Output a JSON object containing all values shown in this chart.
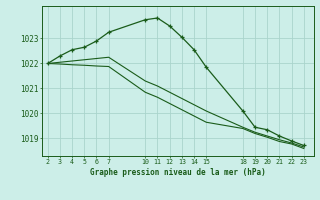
{
  "title": "Graphe pression niveau de la mer (hPa)",
  "bg_color": "#cceee8",
  "grid_color": "#aad4cc",
  "line_color": "#1a5c1a",
  "x_hours": [
    2,
    3,
    4,
    5,
    6,
    7,
    10,
    11,
    12,
    13,
    14,
    15,
    18,
    19,
    20,
    21,
    22,
    23
  ],
  "line1": [
    1022.0,
    1022.3,
    1022.55,
    1022.65,
    1022.9,
    1023.25,
    1023.75,
    1023.82,
    1023.5,
    1023.05,
    1022.55,
    1021.85,
    1020.1,
    1019.45,
    1019.35,
    1019.1,
    1018.9,
    1018.72
  ],
  "line2": [
    1022.0,
    1022.05,
    1022.1,
    1022.15,
    1022.2,
    1022.25,
    1021.3,
    1021.1,
    1020.85,
    1020.6,
    1020.35,
    1020.1,
    1019.45,
    1019.25,
    1019.1,
    1018.95,
    1018.82,
    1018.66
  ],
  "line3": [
    1022.0,
    1021.98,
    1021.95,
    1021.93,
    1021.9,
    1021.88,
    1020.85,
    1020.65,
    1020.4,
    1020.15,
    1019.9,
    1019.65,
    1019.4,
    1019.2,
    1019.05,
    1018.88,
    1018.78,
    1018.6
  ],
  "ylim": [
    1018.3,
    1024.3
  ],
  "yticks": [
    1019,
    1020,
    1021,
    1022,
    1023
  ],
  "xlim": [
    1.5,
    23.8
  ],
  "xticks": [
    2,
    3,
    4,
    5,
    6,
    7,
    10,
    11,
    12,
    13,
    14,
    15,
    18,
    19,
    20,
    21,
    22,
    23
  ]
}
